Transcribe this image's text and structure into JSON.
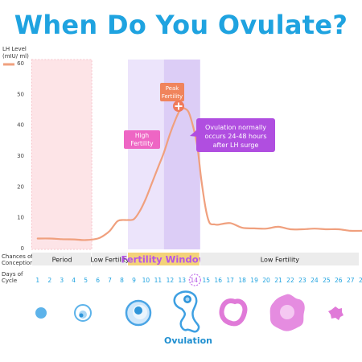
{
  "title": "When Do You Ovulate?",
  "chart_data": {
    "type": "line",
    "ylabel": "LH Level (mIU/ ml)",
    "ylim": [
      0,
      60
    ],
    "yticks": [
      0,
      10,
      20,
      30,
      40,
      50,
      60
    ],
    "series": [
      {
        "color": "#f0a07e",
        "x": [
          1,
          2,
          3,
          4,
          5,
          6,
          6.5,
          7,
          7.6,
          8,
          8.5,
          9,
          9.5,
          10,
          10.5,
          11,
          11.5,
          12,
          12.5,
          12.8,
          13,
          13.3,
          13.6,
          14,
          14.3,
          14.6,
          15,
          15.3,
          15.7,
          16,
          17,
          18,
          19,
          20,
          21,
          22,
          23,
          24,
          25,
          26,
          27,
          28
        ],
        "y": [
          3,
          3,
          2.8,
          2.7,
          2.5,
          3,
          4,
          5.5,
          8.5,
          9,
          9,
          9.3,
          12,
          16,
          21,
          26,
          31,
          37,
          42,
          44.5,
          45.2,
          45,
          43.5,
          38,
          32,
          22,
          12,
          8,
          7.6,
          7.5,
          8,
          6.5,
          6.3,
          6.2,
          6.8,
          6,
          6,
          6.2,
          6,
          6,
          5.5,
          5.5
        ]
      }
    ],
    "annotations": {
      "high_fertility": "High\nFertility",
      "peak_fertility": "Peak\nFertility",
      "ovulation_note": "Ovulation normally\noccurs 24-48 hours\nafter LH surge"
    },
    "conception_row": {
      "label": "Chances of\nConception",
      "segments": [
        {
          "label": "Period",
          "from_day": 1,
          "to_day": 5,
          "style": "normal"
        },
        {
          "label": "Low Fertility",
          "from_day": 6,
          "to_day": 8,
          "style": "normal"
        },
        {
          "label": "Fertility Window",
          "from_day": 9,
          "to_day": 14,
          "style": "highlight"
        },
        {
          "label": "Low Fertility",
          "from_day": 15,
          "to_day": 28,
          "style": "normal"
        }
      ]
    },
    "days_row": {
      "label": "Days of\nCycle",
      "days": [
        1,
        2,
        3,
        4,
        5,
        6,
        7,
        8,
        9,
        10,
        11,
        12,
        13,
        14,
        15,
        16,
        17,
        18,
        19,
        20,
        21,
        22,
        23,
        24,
        25,
        26,
        27,
        28
      ],
      "highlight_day": 14
    },
    "bands": [
      {
        "name": "period",
        "from_day": 1,
        "to_day": 5,
        "color": "#fde4e7"
      },
      {
        "name": "fertile",
        "from_day": 9,
        "to_day": 14,
        "color": "#ece4fb"
      },
      {
        "name": "peak",
        "from_day": 12,
        "to_day": 14,
        "color": "#dccdf6"
      }
    ],
    "legend": "top-left",
    "grid": false
  },
  "ovulation_label": "Ovulation",
  "icons": [
    "small-egg-icon",
    "growing-follicle-icon",
    "mature-follicle-icon",
    "ovulation-follicle-icon",
    "corpus-luteum-icon",
    "large-corpus-luteum-icon",
    "regressing-corpus-icon"
  ],
  "colors": {
    "title": "#1fa3e0",
    "line": "#f0a07e",
    "peak_label": "#f0845c",
    "high_label": "#ee66c4",
    "note": "#b04ee0",
    "fertility_window_text": "#b655e6",
    "fertility_window_bg": "#f3d27a",
    "days": "#1fa3e0",
    "ovulation_text": "#1f8fd0"
  }
}
